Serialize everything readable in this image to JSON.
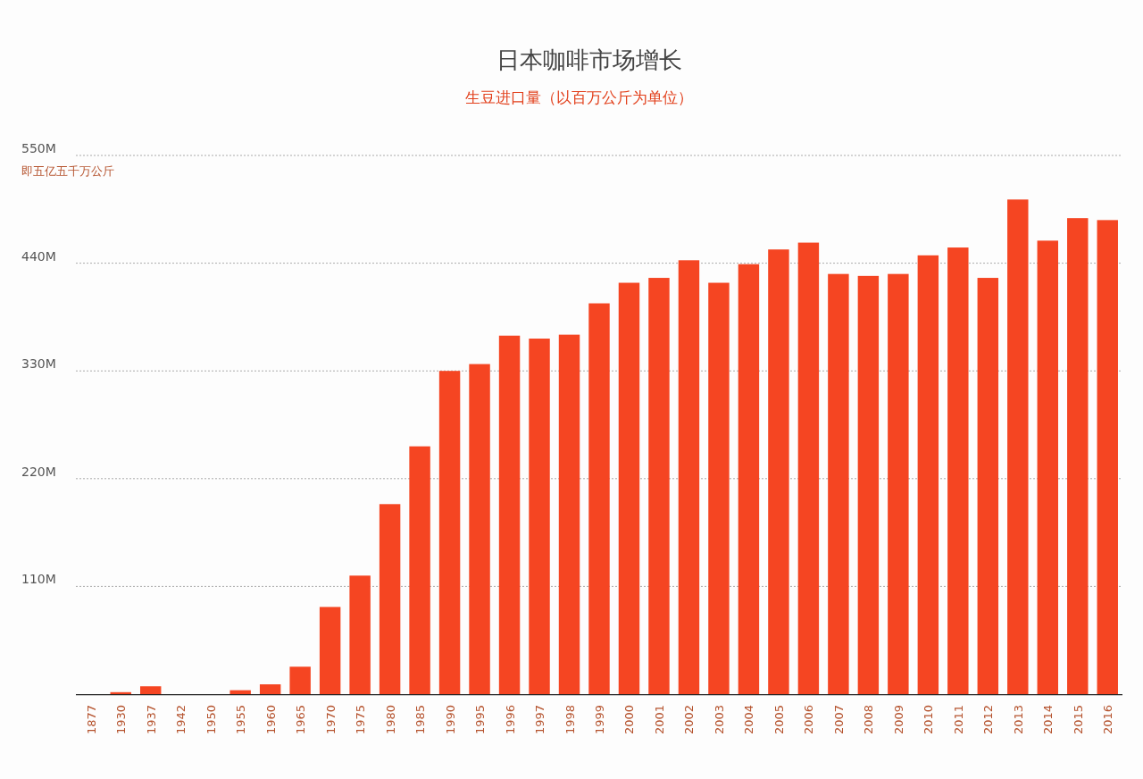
{
  "chart_data": {
    "type": "bar",
    "title": "日本咖啡市场增长",
    "subtitle": "生豆进口量（以百万公斤为单位）",
    "annotations": [
      "即五亿五千万公斤"
    ],
    "categories": [
      "1877",
      "1930",
      "1937",
      "1942",
      "1950",
      "1955",
      "1960",
      "1965",
      "1970",
      "1975",
      "1980",
      "1985",
      "1990",
      "1995",
      "1996",
      "1997",
      "1998",
      "1999",
      "2000",
      "2001",
      "2002",
      "2003",
      "2004",
      "2005",
      "2006",
      "2007",
      "2008",
      "2009",
      "2010",
      "2011",
      "2012",
      "2013",
      "2014",
      "2015",
      "2016"
    ],
    "values": [
      0,
      2,
      8,
      0,
      0,
      4,
      10,
      28,
      89,
      121,
      194,
      253,
      330,
      337,
      366,
      363,
      367,
      399,
      420,
      425,
      443,
      420,
      439,
      454,
      461,
      429,
      427,
      429,
      448,
      456,
      425,
      505,
      463,
      486,
      484
    ],
    "color": "#f54522",
    "ylim": [
      0,
      550
    ],
    "yticks": [
      {
        "value": 110,
        "label": "110M"
      },
      {
        "value": 220,
        "label": "220M"
      },
      {
        "value": 330,
        "label": "330M"
      },
      {
        "value": 440,
        "label": "440M"
      },
      {
        "value": 550,
        "label": "550M"
      }
    ],
    "grid": "y"
  }
}
